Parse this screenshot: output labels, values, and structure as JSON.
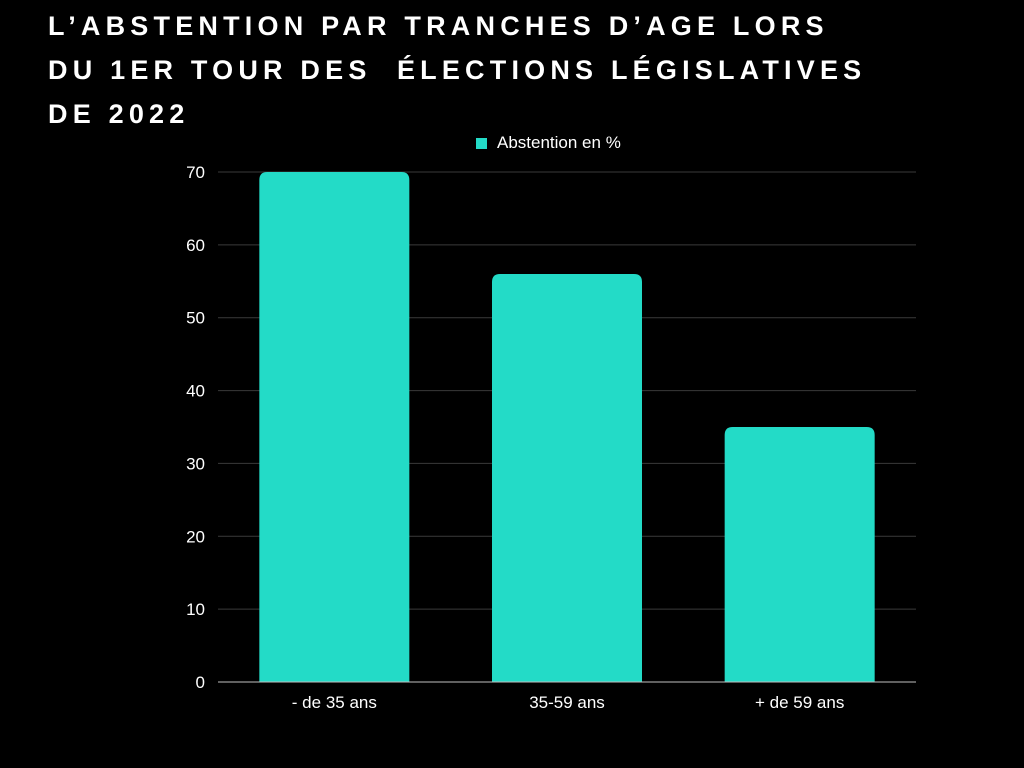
{
  "title_lines": [
    "L’ABSTENTION PAR TRANCHES D’AGE LORS",
    "DU 1ER TOUR DES  ÉLECTIONS LÉGISLATIVES",
    "DE 2022"
  ],
  "legend": {
    "label": "Abstention en %"
  },
  "colors": {
    "background": "#000000",
    "bar": "#23dbc7",
    "grid": "#3a3a3a",
    "axis": "#bfbfbf",
    "text": "#ffffff"
  },
  "chart_data": {
    "type": "bar",
    "title": "L’ABSTENTION PAR TRANCHES D’AGE LORS DU 1ER TOUR DES  ÉLECTIONS LÉGISLATIVES DE 2022",
    "categories": [
      "- de 35 ans",
      "35-59 ans",
      "+ de 59 ans"
    ],
    "series": [
      {
        "name": "Abstention en %",
        "values": [
          70,
          56,
          35
        ]
      }
    ],
    "xlabel": "",
    "ylabel": "",
    "ylim": [
      0,
      70
    ],
    "yticks": [
      0,
      10,
      20,
      30,
      40,
      50,
      60,
      70
    ],
    "grid": true,
    "legend_position": "top"
  }
}
